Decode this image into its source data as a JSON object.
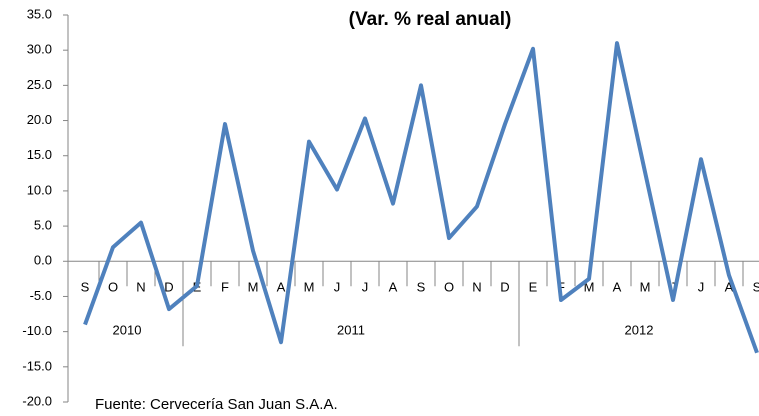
{
  "chart_data": {
    "type": "line",
    "title": "(Var. % real anual)",
    "source": "Fuente: Cervecería San Juan S.A.A.",
    "categories": [
      "S",
      "O",
      "N",
      "D",
      "E",
      "F",
      "M",
      "A",
      "M",
      "J",
      "J",
      "A",
      "S",
      "O",
      "N",
      "D",
      "E",
      "F",
      "M",
      "A",
      "M",
      "J",
      "J",
      "A",
      "S"
    ],
    "year_groups": [
      {
        "label": "2010",
        "size": 4
      },
      {
        "label": "2011",
        "size": 12
      },
      {
        "label": "2012",
        "size": 9
      }
    ],
    "series": [
      {
        "name": "Var. % real anual",
        "color": "#4f81bd",
        "values": [
          -9.0,
          2.0,
          5.5,
          -6.8,
          -3.5,
          19.5,
          1.5,
          -11.5,
          17.0,
          10.2,
          20.3,
          8.2,
          25.0,
          3.3,
          7.8,
          19.5,
          30.2,
          -5.5,
          -2.5,
          31.0,
          12.7,
          -5.5,
          14.5,
          -2.0,
          -13.0
        ]
      }
    ],
    "ylim": [
      -20,
      35
    ],
    "yticks": [
      {
        "value": -20,
        "label": "-20.0"
      },
      {
        "value": -15,
        "label": "-15.0"
      },
      {
        "value": -10,
        "label": "-10.0"
      },
      {
        "value": -5,
        "label": "-5.0"
      },
      {
        "value": 0,
        "label": "0.0"
      },
      {
        "value": 5,
        "label": "5.0"
      },
      {
        "value": 10,
        "label": "10.0"
      },
      {
        "value": 15,
        "label": "15.0"
      },
      {
        "value": 20,
        "label": "20.0"
      },
      {
        "value": 25,
        "label": "25.0"
      },
      {
        "value": 30,
        "label": "30.0"
      },
      {
        "value": 35,
        "label": "35.0"
      }
    ]
  }
}
